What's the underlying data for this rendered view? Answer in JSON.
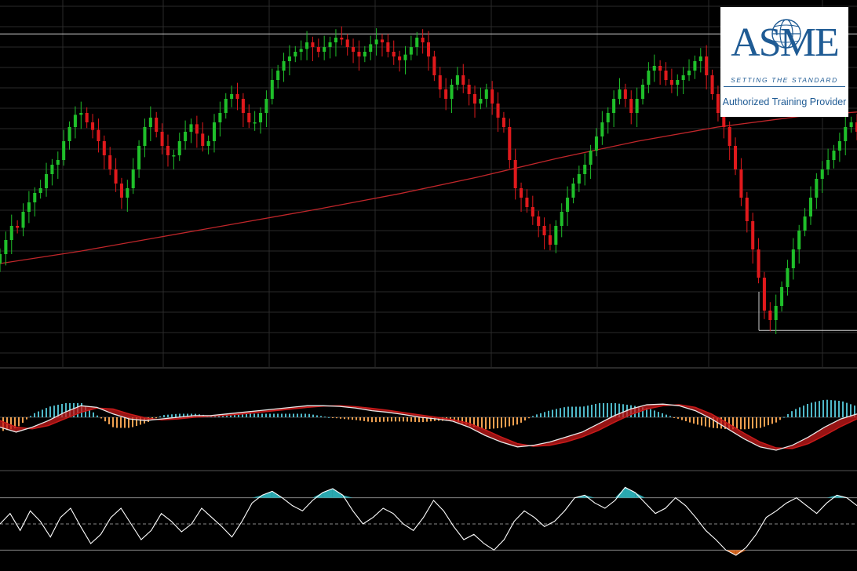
{
  "logo": {
    "brand": "ASME",
    "tagline": "SETTING THE STANDARD",
    "provider": "Authorized Training Provider"
  },
  "colors": {
    "background": "#000000",
    "grid": "#2a2a2a",
    "up_candle": "#1fbf2a",
    "down_candle": "#e0191c",
    "moving_average": "#c0262a",
    "level_line": "#cfcfcf",
    "macd_fast": "#e8e8e8",
    "macd_signal": "#c81a1a",
    "hist_positive": "#4fb8c8",
    "hist_negative": "#f0a050",
    "oscillator": "#ffffff",
    "osc_overbought_fill": "#2aa8b0",
    "osc_oversold_fill": "#d06420"
  },
  "chart_data": [
    {
      "type": "candlestick",
      "series": [
        {
          "name": "",
          "kind": "ohlc",
          "close": [
            100.0,
            101.5,
            103.0,
            102.8,
            104.5,
            105.5,
            106.5,
            107.0,
            108.5,
            109.5,
            110.0,
            112.0,
            113.5,
            114.8,
            115.0,
            114.0,
            113.2,
            112.0,
            110.5,
            109.0,
            107.5,
            106.0,
            107.0,
            109.0,
            111.5,
            113.5,
            114.5,
            113.0,
            111.5,
            110.5,
            110.5,
            112.0,
            113.0,
            113.8,
            112.8,
            111.5,
            112.0,
            114.0,
            115.0,
            116.5,
            117.0,
            116.5,
            115.0,
            114.0,
            114.0,
            115.0,
            116.5,
            118.5,
            119.5,
            120.5,
            121.0,
            121.5,
            121.8,
            122.5,
            122.0,
            121.5,
            122.0,
            122.5,
            123.0,
            122.8,
            122.0,
            121.5,
            121.0,
            121.5,
            122.3,
            122.8,
            122.5,
            121.5,
            121.0,
            120.6,
            121.2,
            122.0,
            123.0,
            122.5,
            121.0,
            119.0,
            117.5,
            116.5,
            118.0,
            119.0,
            118.0,
            117.0,
            116.0,
            116.5,
            117.5,
            116.0,
            114.5,
            113.5,
            110.0,
            107.0,
            106.0,
            105.0,
            104.0,
            103.0,
            102.0,
            101.0,
            103.0,
            104.5,
            106.0,
            107.5,
            108.5,
            109.5,
            111.0,
            112.5,
            114.0,
            115.0,
            116.5,
            117.5,
            116.5,
            115.0,
            116.5,
            118.0,
            119.5,
            120.0,
            119.5,
            118.5,
            118.0,
            118.5,
            119.0,
            119.5,
            120.5,
            121.0,
            119.0,
            117.0,
            115.0,
            113.5,
            111.5,
            109.0,
            106.0,
            103.5,
            100.5,
            97.5,
            94.0,
            93.0,
            94.5,
            96.5,
            98.5,
            100.5,
            102.5,
            104.0,
            106.0,
            108.0,
            109.0,
            110.0,
            111.0,
            112.0,
            113.5,
            114.0,
            113.0
          ],
          "open": [
            99.0,
            100.0,
            101.5,
            103.0,
            102.8,
            104.5,
            105.5,
            106.5,
            107.0,
            108.5,
            109.5,
            110.0,
            112.0,
            113.5,
            114.8,
            115.0,
            114.0,
            113.2,
            112.0,
            110.5,
            109.0,
            107.5,
            106.0,
            107.0,
            109.0,
            111.5,
            113.5,
            114.5,
            113.0,
            111.5,
            110.5,
            110.5,
            112.0,
            113.0,
            113.8,
            112.8,
            111.5,
            112.0,
            114.0,
            115.0,
            116.5,
            117.0,
            116.5,
            115.0,
            114.0,
            114.0,
            115.0,
            116.5,
            118.5,
            119.5,
            120.5,
            121.0,
            121.5,
            121.8,
            122.5,
            122.0,
            121.5,
            122.0,
            122.5,
            123.0,
            122.8,
            122.0,
            121.5,
            121.0,
            121.5,
            122.3,
            122.8,
            122.5,
            121.5,
            121.0,
            120.6,
            121.2,
            122.0,
            123.0,
            122.5,
            121.0,
            119.0,
            117.5,
            116.5,
            118.0,
            119.0,
            118.0,
            117.0,
            116.0,
            116.5,
            117.5,
            116.0,
            114.5,
            113.5,
            110.0,
            107.0,
            106.0,
            105.0,
            104.0,
            103.0,
            102.0,
            101.0,
            103.0,
            104.5,
            106.0,
            107.5,
            108.5,
            109.5,
            111.0,
            112.5,
            114.0,
            115.0,
            116.5,
            117.5,
            116.5,
            115.0,
            116.5,
            118.0,
            119.5,
            120.0,
            119.5,
            118.5,
            118.0,
            118.5,
            119.0,
            119.5,
            120.5,
            121.0,
            119.0,
            117.0,
            115.0,
            113.5,
            111.5,
            109.0,
            106.0,
            103.5,
            100.5,
            97.5,
            94.0,
            93.0,
            94.5,
            96.5,
            98.5,
            100.5,
            102.5,
            104.0,
            106.0,
            108.0,
            109.0,
            110.0,
            111.0,
            112.0,
            113.5,
            114.0
          ]
        },
        {
          "name": "",
          "kind": "moving-average",
          "x": [
            0,
            20,
            40,
            60,
            80,
            100,
            120,
            140,
            160,
            180,
            200,
            215
          ],
          "values": [
            99.0,
            100.3,
            101.8,
            103.3,
            104.8,
            106.4,
            108.2,
            110.2,
            112.0,
            113.5,
            114.6,
            115.1
          ]
        }
      ],
      "horizontal_lines": [
        123.4,
        91.9
      ]
    },
    {
      "type": "line",
      "series": [
        {
          "name": "",
          "kind": "fast",
          "values": [
            -0.3,
            -0.45,
            -0.3,
            -0.1,
            0.15,
            0.35,
            0.3,
            0.1,
            -0.05,
            -0.1,
            -0.05,
            0.0,
            0.05,
            0.05,
            0.1,
            0.15,
            0.2,
            0.25,
            0.3,
            0.35,
            0.35,
            0.33,
            0.28,
            0.2,
            0.15,
            0.08,
            0.0,
            -0.05,
            -0.12,
            -0.3,
            -0.55,
            -0.75,
            -0.9,
            -0.85,
            -0.75,
            -0.6,
            -0.45,
            -0.2,
            0.05,
            0.25,
            0.38,
            0.4,
            0.35,
            0.2,
            -0.05,
            -0.35,
            -0.65,
            -0.9,
            -1.0,
            -0.85,
            -0.6,
            -0.3,
            -0.05,
            0.1
          ]
        },
        {
          "name": "",
          "kind": "signal",
          "values": [
            -0.1,
            -0.3,
            -0.35,
            -0.25,
            -0.05,
            0.15,
            0.28,
            0.25,
            0.1,
            -0.02,
            -0.08,
            -0.05,
            0.0,
            0.03,
            0.06,
            0.1,
            0.15,
            0.2,
            0.25,
            0.3,
            0.34,
            0.35,
            0.32,
            0.27,
            0.21,
            0.14,
            0.07,
            0.0,
            -0.07,
            -0.18,
            -0.38,
            -0.6,
            -0.8,
            -0.88,
            -0.85,
            -0.75,
            -0.6,
            -0.4,
            -0.15,
            0.08,
            0.25,
            0.35,
            0.38,
            0.3,
            0.1,
            -0.18,
            -0.48,
            -0.75,
            -0.93,
            -0.95,
            -0.8,
            -0.55,
            -0.28,
            -0.05
          ]
        }
      ],
      "zero_line": 0
    },
    {
      "type": "line",
      "series": [
        {
          "name": "",
          "kind": "oscillator",
          "values": [
            50,
            58,
            45,
            60,
            52,
            40,
            55,
            62,
            48,
            35,
            42,
            55,
            62,
            50,
            38,
            45,
            58,
            52,
            44,
            50,
            62,
            55,
            48,
            40,
            52,
            66,
            72,
            75,
            70,
            64,
            60,
            68,
            74,
            77,
            72,
            60,
            50,
            55,
            62,
            58,
            50,
            45,
            55,
            68,
            60,
            48,
            38,
            42,
            35,
            30,
            38,
            52,
            60,
            55,
            48,
            52,
            60,
            70,
            72,
            66,
            62,
            68,
            78,
            74,
            66,
            58,
            62,
            70,
            64,
            55,
            45,
            38,
            30,
            26,
            32,
            42,
            55,
            60,
            66,
            70,
            64,
            58,
            66,
            72,
            70,
            64
          ]
        }
      ],
      "reference_lines": [
        70,
        50,
        30
      ]
    }
  ]
}
